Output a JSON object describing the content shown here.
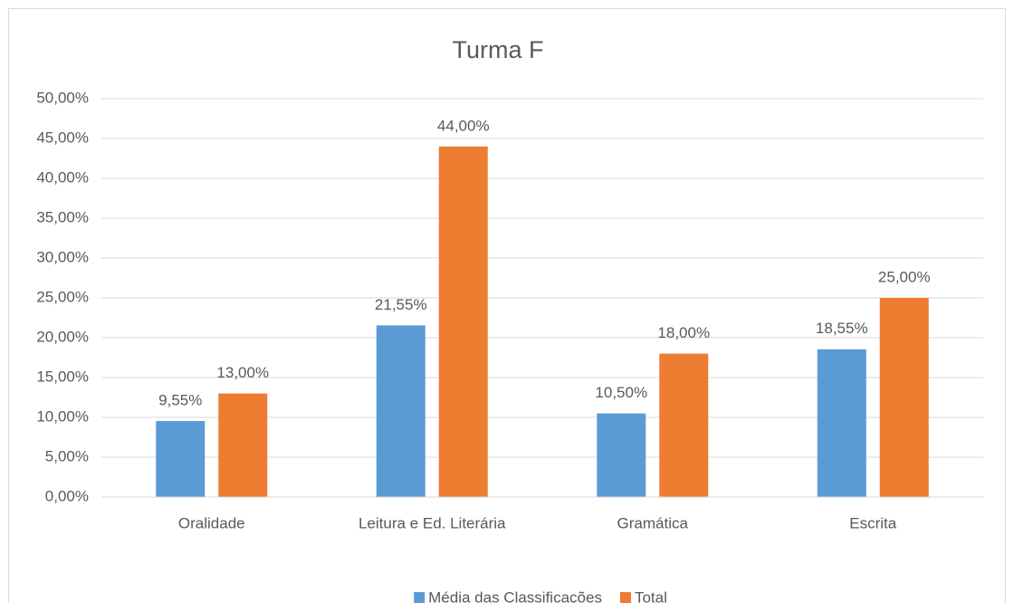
{
  "chart_data": {
    "type": "bar",
    "title": "Turma F",
    "categories": [
      "Oralidade",
      "Leitura e Ed. Literária",
      "Gramática",
      "Escrita"
    ],
    "series": [
      {
        "name": "Média das Classificações",
        "color": "#5b9bd5",
        "values": [
          9.55,
          21.55,
          10.5,
          18.55
        ],
        "value_labels": [
          "9,55%",
          "21,55%",
          "10,50%",
          "18,55%"
        ]
      },
      {
        "name": "Total",
        "color": "#ed7d31",
        "values": [
          13,
          44,
          18,
          25
        ],
        "value_labels": [
          "13,00%",
          "44,00%",
          "18,00%",
          "25,00%"
        ]
      }
    ],
    "ylim": [
      0,
      50
    ],
    "yticks": [
      {
        "value": 0,
        "label": "0,00%"
      },
      {
        "value": 5,
        "label": "5,00%"
      },
      {
        "value": 10,
        "label": "10,00%"
      },
      {
        "value": 15,
        "label": "15,00%"
      },
      {
        "value": 20,
        "label": "20,00%"
      },
      {
        "value": 25,
        "label": "25,00%"
      },
      {
        "value": 30,
        "label": "30,00%"
      },
      {
        "value": 35,
        "label": "35,00%"
      },
      {
        "value": 40,
        "label": "40,00%"
      },
      {
        "value": 45,
        "label": "45,00%"
      },
      {
        "value": 50,
        "label": "50,00%"
      }
    ],
    "grid": true,
    "legend": "bottom"
  }
}
